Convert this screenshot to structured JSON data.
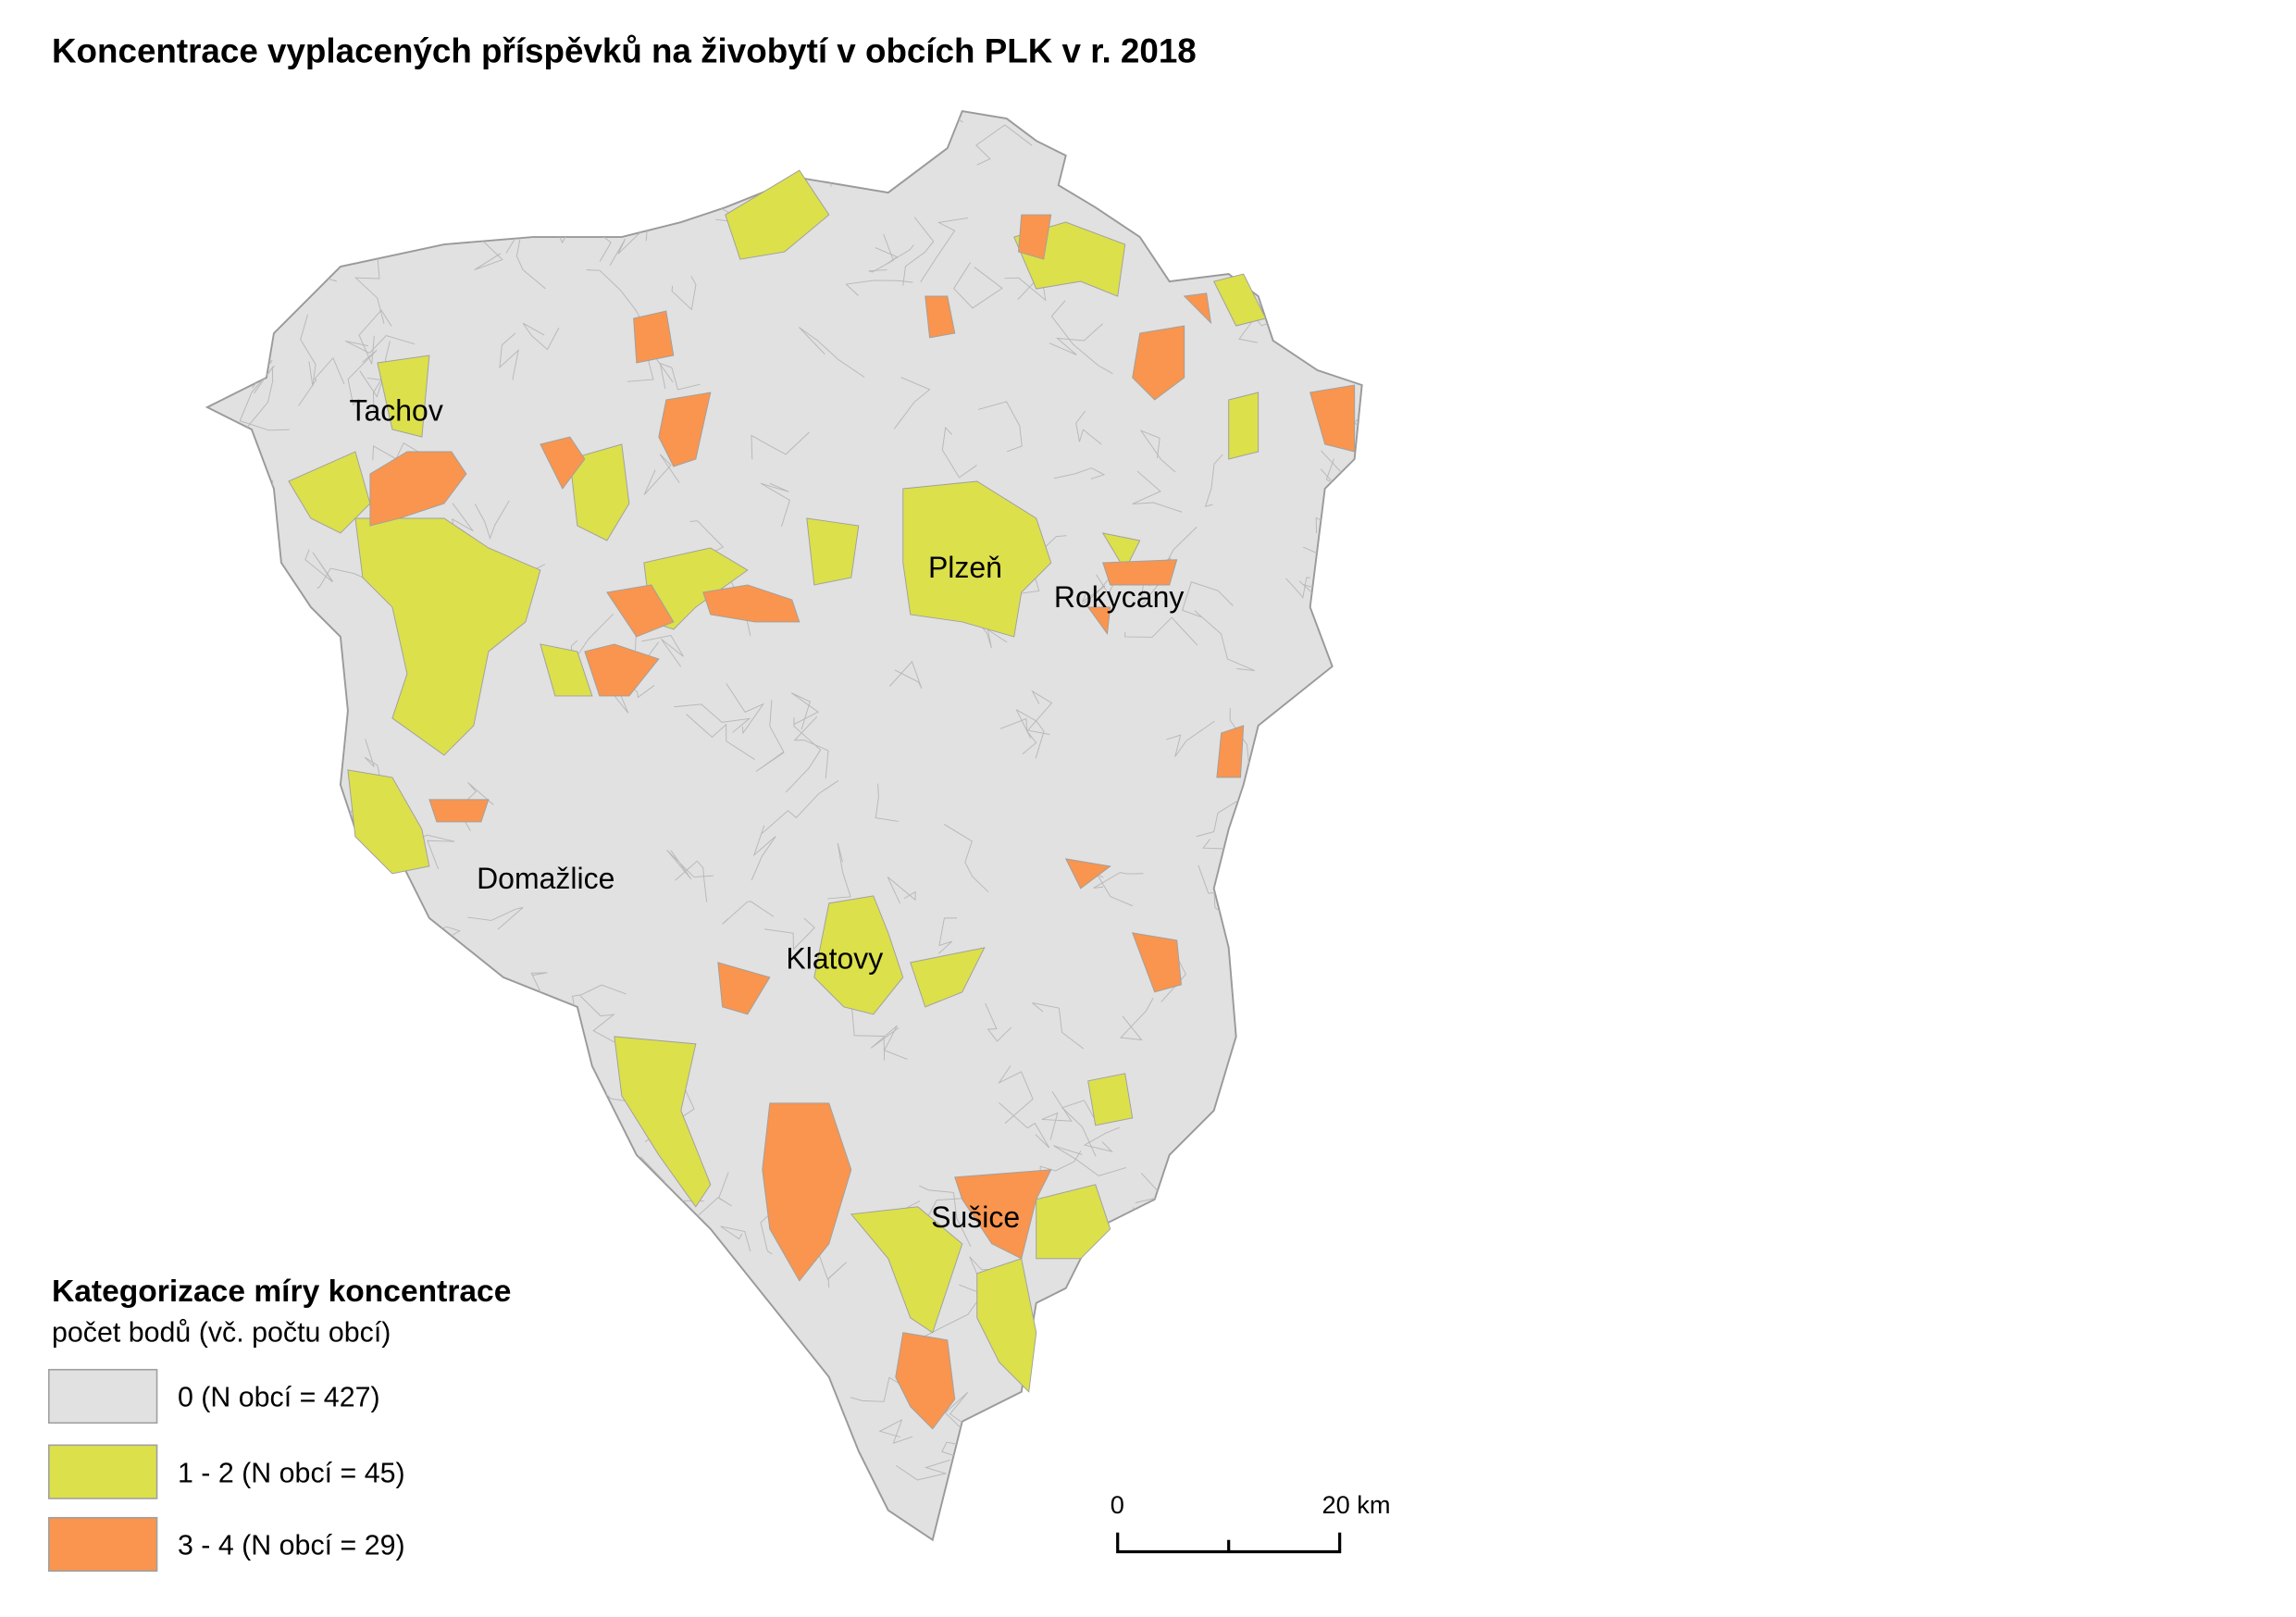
{
  "title": "Koncentrace vyplacených příspěvků na živobytí v obcích PLK v r. 2018",
  "places": [
    "Tachov",
    "Plzeň",
    "Rokycany",
    "Domažlice",
    "Klatovy",
    "Sušice"
  ],
  "legend": {
    "title": "Kategorizace míry koncentrace",
    "subtitle": "počet bodů (vč. počtu obcí)",
    "items": [
      {
        "label": "0 (N obcí = 427)",
        "color": "#e1e1e1"
      },
      {
        "label": "1 - 2 (N obcí = 45)",
        "color": "#dce04b"
      },
      {
        "label": "3 - 4 (N obcí = 29)",
        "color": "#f9954e"
      }
    ]
  },
  "scale_bar": {
    "labels": [
      "0",
      "20 km"
    ]
  }
}
